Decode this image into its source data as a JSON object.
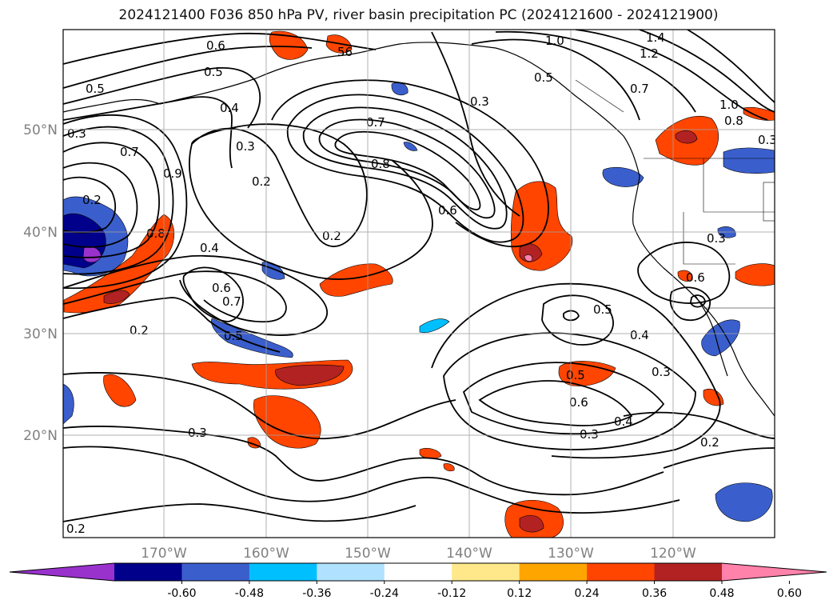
{
  "title": "2024121400 F036 850 hPa PV, river basin precipitation PC (2024121600 - 2024121900)",
  "map": {
    "lat_labels": [
      "50°N",
      "40°N",
      "30°N",
      "20°N"
    ],
    "lon_labels": [
      "170°W",
      "160°W",
      "150°W",
      "140°W",
      "130°W",
      "120°W"
    ],
    "grid": true,
    "contour_labels": [
      {
        "text": "0.6"
      },
      {
        "text": "0.5"
      },
      {
        "text": "0.4"
      },
      {
        "text": "0.3"
      },
      {
        "text": "0.2"
      },
      {
        "text": "0.7"
      },
      {
        "text": "0.8"
      },
      {
        "text": "0.6"
      },
      {
        "text": "0.3"
      },
      {
        "text": "0.2"
      },
      {
        "text": "0.4"
      },
      {
        "text": "0.6"
      },
      {
        "text": "0.7"
      },
      {
        "text": "0.5"
      },
      {
        "text": "0.2"
      },
      {
        "text": "0.3"
      },
      {
        "text": "0.2"
      },
      {
        "text": "1.0"
      },
      {
        "text": "1.2"
      },
      {
        "text": "1.4"
      },
      {
        "text": "0.7"
      },
      {
        "text": "1.0"
      },
      {
        "text": "0.8"
      },
      {
        "text": "0.3"
      },
      {
        "text": "0.6"
      },
      {
        "text": "0.5"
      },
      {
        "text": "0.4"
      },
      {
        "text": "0.3"
      },
      {
        "text": "0.5"
      },
      {
        "text": "0.6"
      },
      {
        "text": "0.4"
      },
      {
        "text": "0.3"
      },
      {
        "text": "0.2"
      },
      {
        "text": "0.5"
      },
      {
        "text": "0.3"
      },
      {
        "text": "0.7"
      },
      {
        "text": "0.8"
      },
      {
        "text": "0.9"
      },
      {
        "text": "0.2"
      },
      {
        "text": "0.5"
      },
      {
        "text": "0.3"
      },
      {
        "text": "56"
      }
    ]
  },
  "colorbar": {
    "ticks": [
      "-0.60",
      "-0.48",
      "-0.36",
      "-0.24",
      "-0.12",
      "0.12",
      "0.24",
      "0.36",
      "0.48",
      "0.60"
    ],
    "colors": [
      "#9932cc",
      "#00008b",
      "#3a5fcd",
      "#00bfff",
      "#b0e2ff",
      "#ffffff",
      "#ffe88a",
      "#ffa500",
      "#ff4500",
      "#b22222",
      "#ff82ab"
    ]
  }
}
